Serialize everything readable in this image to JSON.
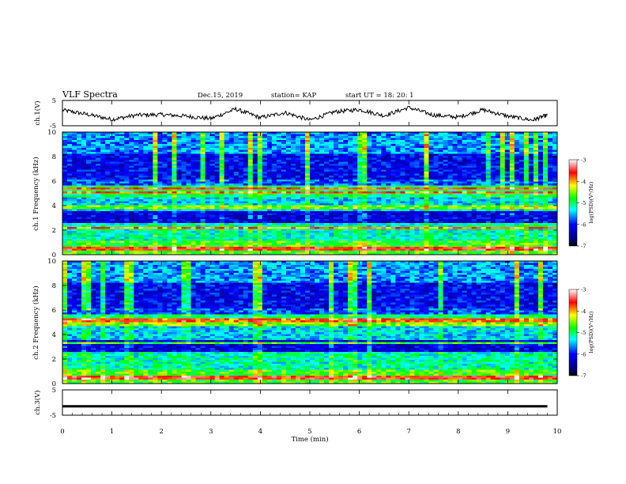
{
  "header": {
    "title": "VLF Spectra",
    "date": "Dec.15, 2019",
    "station": "station= KAP",
    "start": "start UT =   18: 20: 1"
  },
  "chart_data": [
    {
      "type": "line",
      "panel": "ch1-waveform",
      "ylabel": "ch.1(V)",
      "ylim": [
        -5,
        5
      ],
      "yticks": [
        "5",
        "-5"
      ],
      "x": [
        0,
        0.5,
        1,
        1.5,
        2,
        2.5,
        3,
        3.5,
        4,
        4.5,
        5,
        5.5,
        6,
        6.5,
        7,
        7.5,
        8,
        8.5,
        9,
        9.5,
        9.8
      ],
      "y": [
        1.2,
        -0.5,
        -2.5,
        -0.8,
        -0.6,
        -1.2,
        -2.2,
        1.6,
        -1.8,
        0.2,
        -2.8,
        0.5,
        1.4,
        -1.0,
        2.2,
        -0.8,
        -1.6,
        1.3,
        -1.2,
        -2.8,
        -0.8
      ]
    },
    {
      "type": "heatmap",
      "panel": "ch1-spectrogram",
      "ylabel": "ch.1 Frequency (kHz)",
      "ylim": [
        0,
        10
      ],
      "yticks": [
        "0",
        "2",
        "4",
        "6",
        "8",
        "10"
      ],
      "colorbar": {
        "label": "log(PSD)(V²/Hz)",
        "range": [
          -7,
          -3
        ],
        "ticks": [
          "-3",
          "-4",
          "-5",
          "-6",
          "-7"
        ]
      },
      "bands_khz": [
        {
          "f": 0.5,
          "level": -3.6
        },
        {
          "f": 2.2,
          "level": -4.0
        },
        {
          "f": 3.9,
          "level": -4.6
        },
        {
          "f": 5.1,
          "level": -3.8
        },
        {
          "f": 5.4,
          "level": -3.7
        }
      ]
    },
    {
      "type": "heatmap",
      "panel": "ch2-spectrogram",
      "ylabel": "ch.2 Frequency (kHz)",
      "ylim": [
        0,
        10
      ],
      "yticks": [
        "0",
        "2",
        "4",
        "6",
        "8",
        "10"
      ],
      "colorbar": {
        "label": "log(PSD)(V²/Hz)",
        "range": [
          -7,
          -3
        ],
        "ticks": [
          "-3",
          "-4",
          "-5",
          "-6",
          "-7"
        ]
      },
      "bands_khz": [
        {
          "f": 0.5,
          "level": -3.6
        },
        {
          "f": 3.3,
          "level": -4.8
        },
        {
          "f": 4.8,
          "level": -4.5
        },
        {
          "f": 5.2,
          "level": -3.8
        }
      ]
    },
    {
      "type": "line",
      "panel": "ch3-waveform",
      "ylabel": "ch.3(V)",
      "ylim": [
        -5,
        5
      ],
      "yticks": [
        "5",
        "-5"
      ],
      "x": [
        0,
        9.8
      ],
      "y": [
        -1.5,
        -1.5
      ]
    }
  ],
  "xaxis": {
    "label": "Time  (min)",
    "ticks": [
      "0",
      "1",
      "2",
      "3",
      "4",
      "5",
      "6",
      "7",
      "8",
      "9",
      "10"
    ],
    "range": [
      0,
      10
    ]
  },
  "colors": {
    "background": "#ffffff",
    "colormap": [
      "#000080",
      "#0000ff",
      "#00ffff",
      "#00ff00",
      "#ffff00",
      "#ff0000",
      "#ffffff"
    ]
  }
}
